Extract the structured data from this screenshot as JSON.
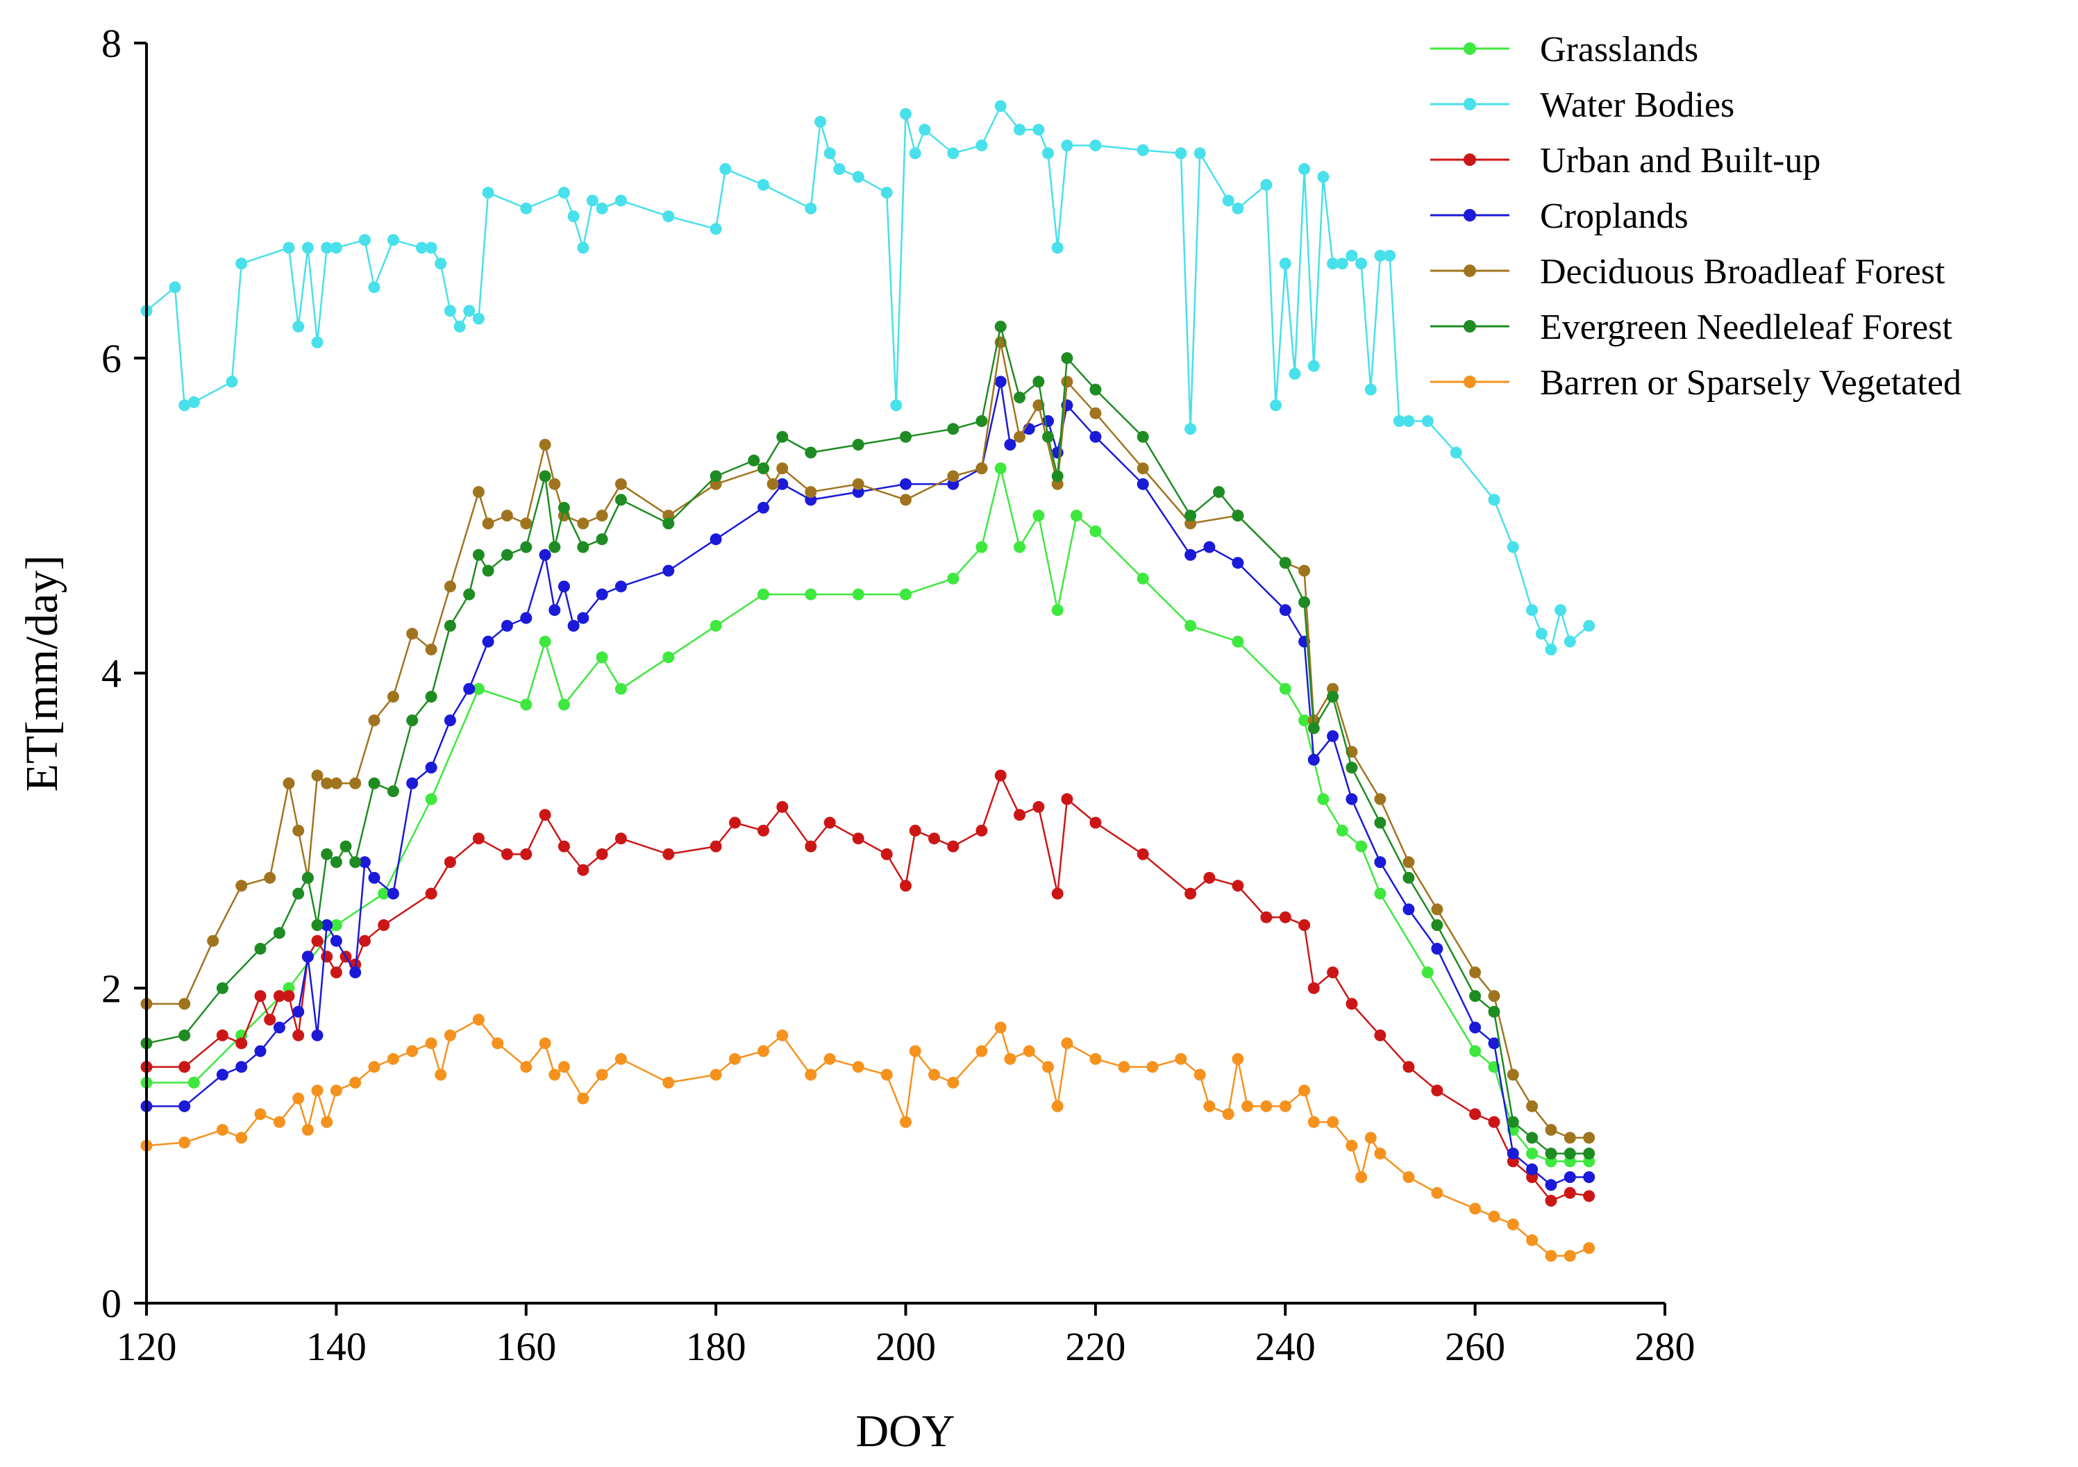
{
  "chart_data": {
    "type": "line",
    "title": "",
    "xlabel": "DOY",
    "ylabel": "ET[mm/day]",
    "xlim": [
      120,
      280
    ],
    "ylim": [
      0,
      8
    ],
    "xticks": [
      120,
      140,
      160,
      180,
      200,
      220,
      240,
      260,
      280
    ],
    "yticks": [
      0,
      2,
      4,
      6,
      8
    ],
    "legend_position": "top-right",
    "series": [
      {
        "name": "Grasslands",
        "color": "#3ee83e",
        "x": [
          120,
          125,
          130,
          135,
          140,
          145,
          150,
          155,
          160,
          162,
          164,
          168,
          170,
          175,
          180,
          185,
          190,
          195,
          200,
          205,
          208,
          210,
          212,
          214,
          216,
          218,
          220,
          225,
          230,
          235,
          240,
          242,
          244,
          246,
          248,
          250,
          255,
          260,
          262,
          264,
          266,
          268,
          270,
          272
        ],
        "y": [
          1.4,
          1.4,
          1.7,
          2.0,
          2.4,
          2.6,
          3.2,
          3.9,
          3.8,
          4.2,
          3.8,
          4.1,
          3.9,
          4.1,
          4.3,
          4.5,
          4.5,
          4.5,
          4.5,
          4.6,
          4.8,
          5.3,
          4.8,
          5.0,
          4.4,
          5.0,
          4.9,
          4.6,
          4.3,
          4.2,
          3.9,
          3.7,
          3.2,
          3.0,
          2.9,
          2.6,
          2.1,
          1.6,
          1.5,
          1.1,
          0.95,
          0.9,
          0.9,
          0.9
        ]
      },
      {
        "name": "Water Bodies",
        "color": "#48e0ea",
        "x": [
          120,
          123,
          124,
          125,
          129,
          130,
          135,
          136,
          137,
          138,
          139,
          140,
          143,
          144,
          146,
          149,
          150,
          151,
          152,
          153,
          154,
          155,
          156,
          160,
          164,
          165,
          166,
          167,
          168,
          170,
          175,
          180,
          181,
          185,
          190,
          191,
          192,
          193,
          195,
          198,
          199,
          200,
          201,
          202,
          205,
          208,
          210,
          212,
          214,
          215,
          216,
          217,
          220,
          225,
          229,
          230,
          231,
          234,
          235,
          238,
          239,
          240,
          241,
          242,
          243,
          244,
          245,
          246,
          247,
          248,
          249,
          250,
          251,
          252,
          253,
          255,
          258,
          262,
          264,
          266,
          267,
          268,
          269,
          270,
          272
        ],
        "y": [
          6.3,
          6.45,
          5.7,
          5.72,
          5.85,
          6.6,
          6.7,
          6.2,
          6.7,
          6.1,
          6.7,
          6.7,
          6.75,
          6.45,
          6.75,
          6.7,
          6.7,
          6.6,
          6.3,
          6.2,
          6.3,
          6.25,
          7.05,
          6.95,
          7.05,
          6.9,
          6.7,
          7.0,
          6.95,
          7.0,
          6.9,
          6.82,
          7.2,
          7.1,
          6.95,
          7.5,
          7.3,
          7.2,
          7.15,
          7.05,
          5.7,
          7.55,
          7.3,
          7.45,
          7.3,
          7.35,
          7.6,
          7.45,
          7.45,
          7.3,
          6.7,
          7.35,
          7.35,
          7.32,
          7.3,
          5.55,
          7.3,
          7.0,
          6.95,
          7.1,
          5.7,
          6.6,
          5.9,
          7.2,
          5.95,
          7.15,
          6.6,
          6.6,
          6.65,
          6.6,
          5.8,
          6.65,
          6.65,
          5.6,
          5.6,
          5.6,
          5.4,
          5.1,
          4.8,
          4.4,
          4.25,
          4.15,
          4.4,
          4.2,
          4.3
        ]
      },
      {
        "name": "Urban and Built-up",
        "color": "#cc1616",
        "x": [
          120,
          124,
          128,
          130,
          132,
          133,
          134,
          135,
          136,
          137,
          138,
          139,
          140,
          141,
          142,
          143,
          145,
          150,
          152,
          155,
          158,
          160,
          162,
          164,
          166,
          168,
          170,
          175,
          180,
          182,
          185,
          187,
          190,
          192,
          195,
          198,
          200,
          201,
          203,
          205,
          208,
          210,
          212,
          214,
          216,
          217,
          220,
          225,
          230,
          232,
          235,
          238,
          240,
          242,
          243,
          245,
          247,
          250,
          253,
          256,
          260,
          262,
          264,
          266,
          268,
          270,
          272
        ],
        "y": [
          1.5,
          1.5,
          1.7,
          1.65,
          1.95,
          1.8,
          1.95,
          1.95,
          1.7,
          2.2,
          2.3,
          2.2,
          2.1,
          2.2,
          2.15,
          2.3,
          2.4,
          2.6,
          2.8,
          2.95,
          2.85,
          2.85,
          3.1,
          2.9,
          2.75,
          2.85,
          2.95,
          2.85,
          2.9,
          3.05,
          3.0,
          3.15,
          2.9,
          3.05,
          2.95,
          2.85,
          2.65,
          3.0,
          2.95,
          2.9,
          3.0,
          3.35,
          3.1,
          3.15,
          2.6,
          3.2,
          3.05,
          2.85,
          2.6,
          2.7,
          2.65,
          2.45,
          2.45,
          2.4,
          2.0,
          2.1,
          1.9,
          1.7,
          1.5,
          1.35,
          1.2,
          1.15,
          0.9,
          0.8,
          0.65,
          0.7,
          0.68
        ]
      },
      {
        "name": "Croplands",
        "color": "#1a1ad8",
        "x": [
          120,
          124,
          128,
          130,
          132,
          134,
          136,
          137,
          138,
          139,
          140,
          142,
          143,
          144,
          146,
          148,
          150,
          152,
          154,
          156,
          158,
          160,
          162,
          163,
          164,
          165,
          166,
          168,
          170,
          175,
          180,
          185,
          187,
          190,
          195,
          200,
          205,
          208,
          210,
          211,
          213,
          215,
          216,
          217,
          220,
          225,
          230,
          232,
          235,
          240,
          242,
          243,
          245,
          247,
          250,
          253,
          256,
          260,
          262,
          264,
          266,
          268,
          270,
          272
        ],
        "y": [
          1.25,
          1.25,
          1.45,
          1.5,
          1.6,
          1.75,
          1.85,
          2.2,
          1.7,
          2.4,
          2.3,
          2.1,
          2.8,
          2.7,
          2.6,
          3.3,
          3.4,
          3.7,
          3.9,
          4.2,
          4.3,
          4.35,
          4.75,
          4.4,
          4.55,
          4.3,
          4.35,
          4.5,
          4.55,
          4.65,
          4.85,
          5.05,
          5.2,
          5.1,
          5.15,
          5.2,
          5.2,
          5.3,
          5.85,
          5.45,
          5.55,
          5.6,
          5.4,
          5.7,
          5.5,
          5.2,
          4.75,
          4.8,
          4.7,
          4.4,
          4.2,
          3.45,
          3.6,
          3.2,
          2.8,
          2.5,
          2.25,
          1.75,
          1.65,
          0.95,
          0.85,
          0.75,
          0.8,
          0.8
        ]
      },
      {
        "name": "Deciduous Broadleaf Forest",
        "color": "#a0741f",
        "x": [
          120,
          124,
          127,
          130,
          133,
          135,
          136,
          137,
          138,
          139,
          140,
          142,
          144,
          146,
          148,
          150,
          152,
          155,
          156,
          158,
          160,
          162,
          163,
          164,
          166,
          168,
          170,
          175,
          180,
          185,
          186,
          187,
          190,
          195,
          200,
          205,
          208,
          210,
          212,
          214,
          216,
          217,
          220,
          225,
          230,
          235,
          240,
          242,
          243,
          245,
          247,
          250,
          253,
          256,
          260,
          262,
          264,
          266,
          268,
          270,
          272
        ],
        "y": [
          1.9,
          1.9,
          2.3,
          2.65,
          2.7,
          3.3,
          3.0,
          2.7,
          3.35,
          3.3,
          3.3,
          3.3,
          3.7,
          3.85,
          4.25,
          4.15,
          4.55,
          5.15,
          4.95,
          5.0,
          4.95,
          5.45,
          5.2,
          5.0,
          4.95,
          5.0,
          5.2,
          5.0,
          5.2,
          5.3,
          5.2,
          5.3,
          5.15,
          5.2,
          5.1,
          5.25,
          5.3,
          6.1,
          5.5,
          5.7,
          5.2,
          5.85,
          5.65,
          5.3,
          4.95,
          5.0,
          4.7,
          4.65,
          3.7,
          3.9,
          3.5,
          3.2,
          2.8,
          2.5,
          2.1,
          1.95,
          1.45,
          1.25,
          1.1,
          1.05,
          1.05
        ]
      },
      {
        "name": "Evergreen Needleleaf Forest",
        "color": "#1e8c22",
        "x": [
          120,
          124,
          128,
          132,
          134,
          136,
          137,
          138,
          139,
          140,
          141,
          142,
          144,
          146,
          148,
          150,
          152,
          154,
          155,
          156,
          158,
          160,
          162,
          163,
          164,
          166,
          168,
          170,
          175,
          180,
          184,
          185,
          187,
          190,
          195,
          200,
          205,
          208,
          210,
          212,
          214,
          215,
          216,
          217,
          220,
          225,
          230,
          233,
          235,
          240,
          242,
          243,
          245,
          247,
          250,
          253,
          256,
          260,
          262,
          264,
          266,
          268,
          270,
          272
        ],
        "y": [
          1.65,
          1.7,
          2.0,
          2.25,
          2.35,
          2.6,
          2.7,
          2.4,
          2.85,
          2.8,
          2.9,
          2.8,
          3.3,
          3.25,
          3.7,
          3.85,
          4.3,
          4.5,
          4.75,
          4.65,
          4.75,
          4.8,
          5.25,
          4.8,
          5.05,
          4.8,
          4.85,
          5.1,
          4.95,
          5.25,
          5.35,
          5.3,
          5.5,
          5.4,
          5.45,
          5.5,
          5.55,
          5.6,
          6.2,
          5.75,
          5.85,
          5.5,
          5.25,
          6.0,
          5.8,
          5.5,
          5.0,
          5.15,
          5.0,
          4.7,
          4.45,
          3.65,
          3.85,
          3.4,
          3.05,
          2.7,
          2.4,
          1.95,
          1.85,
          1.15,
          1.05,
          0.95,
          0.95,
          0.95
        ]
      },
      {
        "name": "Barren or Sparsely Vegetated",
        "color": "#f5921e",
        "x": [
          120,
          124,
          128,
          130,
          132,
          134,
          136,
          137,
          138,
          139,
          140,
          142,
          144,
          146,
          148,
          150,
          151,
          152,
          155,
          157,
          160,
          162,
          163,
          164,
          166,
          168,
          170,
          175,
          180,
          182,
          185,
          187,
          190,
          192,
          195,
          198,
          200,
          201,
          203,
          205,
          208,
          210,
          211,
          213,
          215,
          216,
          217,
          220,
          223,
          226,
          229,
          231,
          232,
          234,
          235,
          236,
          238,
          240,
          242,
          243,
          245,
          247,
          248,
          249,
          250,
          253,
          256,
          260,
          262,
          264,
          266,
          268,
          270,
          272
        ],
        "y": [
          1.0,
          1.02,
          1.1,
          1.05,
          1.2,
          1.15,
          1.3,
          1.1,
          1.35,
          1.15,
          1.35,
          1.4,
          1.5,
          1.55,
          1.6,
          1.65,
          1.45,
          1.7,
          1.8,
          1.65,
          1.5,
          1.65,
          1.45,
          1.5,
          1.3,
          1.45,
          1.55,
          1.4,
          1.45,
          1.55,
          1.6,
          1.7,
          1.45,
          1.55,
          1.5,
          1.45,
          1.15,
          1.6,
          1.45,
          1.4,
          1.6,
          1.75,
          1.55,
          1.6,
          1.5,
          1.25,
          1.65,
          1.55,
          1.5,
          1.5,
          1.55,
          1.45,
          1.25,
          1.2,
          1.55,
          1.25,
          1.25,
          1.25,
          1.35,
          1.15,
          1.15,
          1.0,
          0.8,
          1.05,
          0.95,
          0.8,
          0.7,
          0.6,
          0.55,
          0.5,
          0.4,
          0.3,
          0.3,
          0.35
        ]
      }
    ]
  }
}
